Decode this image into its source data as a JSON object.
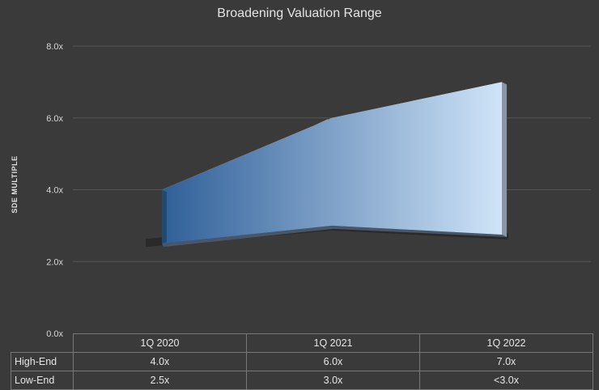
{
  "chart_data": {
    "type": "area",
    "title": "Broadening Valuation Range",
    "ylabel": "SDE MULTIPLE",
    "ylim": [
      0,
      8
    ],
    "yticks": [
      "0.0x",
      "2.0x",
      "4.0x",
      "6.0x",
      "8.0x"
    ],
    "grid": true,
    "categories": [
      "1Q 2020",
      "1Q 2021",
      "1Q 2022"
    ],
    "series": [
      {
        "name": "High-End",
        "values": [
          4.0,
          6.0,
          7.0
        ],
        "labels": [
          "4.0x",
          "6.0x",
          "7.0x"
        ]
      },
      {
        "name": "Low-End",
        "values": [
          2.5,
          3.0,
          2.75
        ],
        "labels": [
          "2.5x",
          "3.0x",
          "<3.0x"
        ]
      }
    ],
    "colors": {
      "fill_start": "#2f5f98",
      "fill_end": "#cfe4f8",
      "background": "#3a3a3a",
      "grid": "#555555"
    }
  }
}
